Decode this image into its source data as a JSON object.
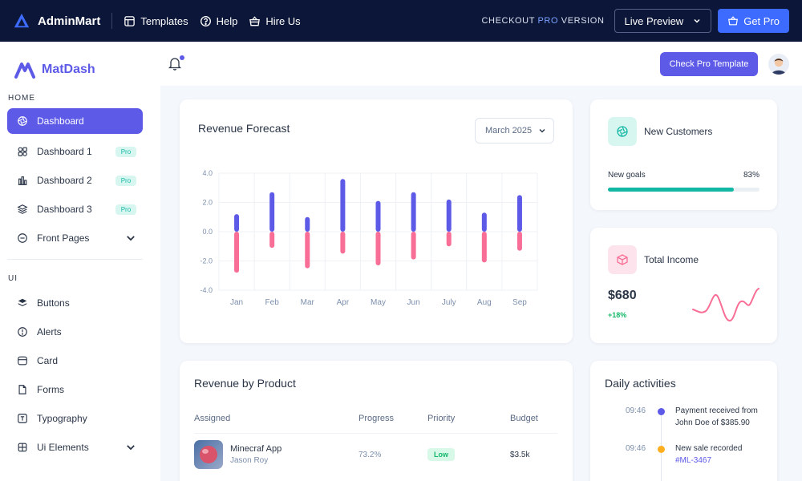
{
  "topbar": {
    "brand": "AdminMart",
    "links": [
      {
        "label": "Templates",
        "icon": "layout-icon"
      },
      {
        "label": "Help",
        "icon": "help-icon"
      },
      {
        "label": "Hire Us",
        "icon": "basket-icon"
      }
    ],
    "checkout_prefix": "CHECKOUT",
    "checkout_highlight": "PRO",
    "checkout_suffix": "VERSION",
    "live_preview": "Live Preview",
    "get_pro": "Get Pro"
  },
  "sidebar": {
    "brand": "MatDash",
    "section_home": "HOME",
    "section_ui": "UI",
    "home_items": [
      {
        "label": "Dashboard",
        "icon": "aperture-icon",
        "active": true
      },
      {
        "label": "Dashboard 1",
        "icon": "shapes-icon",
        "badge": "Pro"
      },
      {
        "label": "Dashboard 2",
        "icon": "bar-chart-icon",
        "badge": "Pro"
      },
      {
        "label": "Dashboard 3",
        "icon": "stack-icon",
        "badge": "Pro"
      },
      {
        "label": "Front Pages",
        "icon": "app-window-icon",
        "chevron": true
      }
    ],
    "ui_items": [
      {
        "label": "Buttons",
        "icon": "layers-icon"
      },
      {
        "label": "Alerts",
        "icon": "alert-circle-icon"
      },
      {
        "label": "Card",
        "icon": "card-icon"
      },
      {
        "label": "Forms",
        "icon": "file-icon"
      },
      {
        "label": "Typography",
        "icon": "typography-icon"
      },
      {
        "label": "Ui Elements",
        "icon": "grid-icon",
        "chevron": true
      }
    ]
  },
  "header": {
    "check_pro": "Check Pro Template"
  },
  "revenue_forecast": {
    "title": "Revenue Forecast",
    "month": "March 2025"
  },
  "chart_data": {
    "type": "bar",
    "categories": [
      "Jan",
      "Feb",
      "Mar",
      "Apr",
      "May",
      "Jun",
      "July",
      "Aug",
      "Sep"
    ],
    "series": [
      {
        "values": [
          1.2,
          2.7,
          1.0,
          3.6,
          2.1,
          2.7,
          2.2,
          1.3,
          2.5
        ],
        "color": "#5d5ae8"
      },
      {
        "values": [
          -2.8,
          -1.1,
          -2.5,
          -1.5,
          -2.3,
          -1.9,
          -1.0,
          -2.1,
          -1.3
        ],
        "color": "#f86e96"
      }
    ],
    "yticks": [
      "4.0",
      "2.0",
      "0.0",
      "-2.0",
      "-4.0"
    ],
    "ylim": [
      -4,
      4
    ],
    "grid": true
  },
  "new_customers": {
    "title": "New Customers",
    "goal_label": "New goals",
    "goal_value": "83%",
    "goal_fraction": 0.83
  },
  "total_income": {
    "title": "Total Income",
    "value": "$680",
    "change": "+18%"
  },
  "revenue_by_product": {
    "title": "Revenue by Product",
    "columns": [
      "Assigned",
      "Progress",
      "Priority",
      "Budget"
    ],
    "rows": [
      {
        "name": "Minecraf App",
        "person": "Jason Roy",
        "progress": "73.2%",
        "priority": "Low",
        "budget": "$3.5k"
      }
    ]
  },
  "daily_activities": {
    "title": "Daily activities",
    "items": [
      {
        "time": "09:46",
        "text": "Payment received from John Doe of $385.90",
        "link": "",
        "dot": "#5d5ae8"
      },
      {
        "time": "09:46",
        "text": "New sale recorded",
        "link": "#ML-3467",
        "dot": "#ffae1f"
      }
    ]
  },
  "colors": {
    "primary": "#5d5ae8",
    "teal": "#13b8a4",
    "pink": "#f86e96",
    "navy": "#0c1638",
    "blue": "#3d6bff"
  }
}
